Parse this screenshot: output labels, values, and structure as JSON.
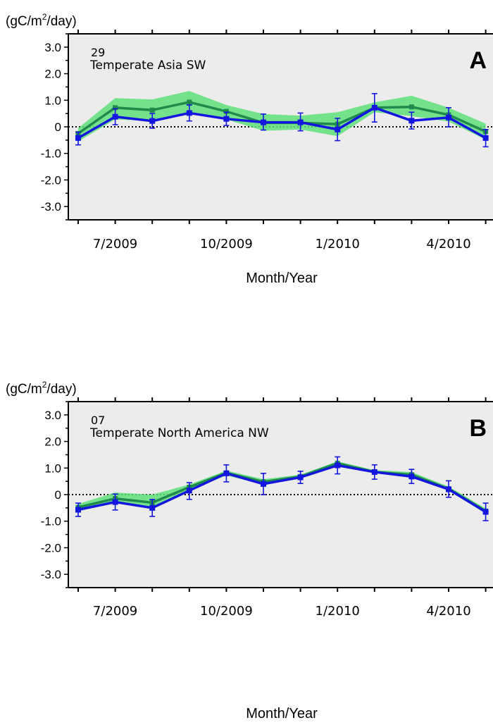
{
  "chart_data": [
    {
      "type": "line",
      "panel_label": "A",
      "region_id": "29",
      "region_name": "Temperate Asia SW",
      "unit_label": "(gC/m",
      "unit_sup": "2",
      "unit_tail": "/day)",
      "xlabel": "Month/Year",
      "ylim": [
        -3.5,
        3.5
      ],
      "yticks": [
        3.0,
        2.0,
        1.0,
        0,
        -1.0,
        -2.0,
        -3.0
      ],
      "ytick_labels": [
        "3.0",
        "2.0",
        "1.0",
        "0",
        "-1.0",
        "-2.0",
        "-3.0"
      ],
      "xtick_labels": [
        {
          "label": "7/2009",
          "month_index": 1
        },
        {
          "label": "10/2009",
          "month_index": 4
        },
        {
          "label": "1/2010",
          "month_index": 7
        },
        {
          "label": "4/2010",
          "month_index": 10
        }
      ],
      "months": [
        "6/2009",
        "7/2009",
        "8/2009",
        "9/2009",
        "10/2009",
        "11/2009",
        "12/2009",
        "1/2010",
        "2/2010",
        "3/2010",
        "4/2010",
        "5/2010"
      ],
      "series": [
        {
          "color": "#1f8a4c",
          "values": [
            -0.25,
            0.72,
            0.63,
            0.93,
            0.58,
            0.15,
            0.15,
            0.1,
            0.72,
            0.75,
            0.45,
            -0.18
          ],
          "band_upper": [
            -0.05,
            1.08,
            1.03,
            1.35,
            0.82,
            0.48,
            0.42,
            0.55,
            0.92,
            1.17,
            0.72,
            0.12
          ],
          "band_lower": [
            -0.55,
            0.28,
            0.22,
            0.48,
            0.28,
            -0.15,
            -0.1,
            -0.35,
            0.55,
            0.4,
            0.2,
            -0.48
          ],
          "band_color": "#5ee07a"
        },
        {
          "color": "#1515e0",
          "values": [
            -0.42,
            0.38,
            0.22,
            0.52,
            0.3,
            0.17,
            0.17,
            -0.1,
            0.72,
            0.23,
            0.35,
            -0.42
          ],
          "err_upper": [
            -0.2,
            0.68,
            0.5,
            0.82,
            0.55,
            0.48,
            0.52,
            0.32,
            1.25,
            0.55,
            0.72,
            -0.1
          ],
          "err_lower": [
            -0.68,
            0.08,
            -0.05,
            0.22,
            0.05,
            -0.12,
            -0.15,
            -0.52,
            0.18,
            -0.08,
            0.0,
            -0.75
          ]
        }
      ]
    },
    {
      "type": "line",
      "panel_label": "B",
      "region_id": "07",
      "region_name": "Temperate North America NW",
      "unit_label": "(gC/m",
      "unit_sup": "2",
      "unit_tail": "/day)",
      "xlabel": "Month/Year",
      "ylim": [
        -3.5,
        3.5
      ],
      "yticks": [
        3.0,
        2.0,
        1.0,
        0,
        -1.0,
        -2.0,
        -3.0
      ],
      "ytick_labels": [
        "3.0",
        "2.0",
        "1.0",
        "0",
        "-1.0",
        "-2.0",
        "-3.0"
      ],
      "xtick_labels": [
        {
          "label": "7/2009",
          "month_index": 1
        },
        {
          "label": "10/2009",
          "month_index": 4
        },
        {
          "label": "1/2010",
          "month_index": 7
        },
        {
          "label": "4/2010",
          "month_index": 10
        }
      ],
      "months": [
        "6/2009",
        "7/2009",
        "8/2009",
        "9/2009",
        "10/2009",
        "11/2009",
        "12/2009",
        "1/2010",
        "2/2010",
        "3/2010",
        "4/2010",
        "5/2010"
      ],
      "series": [
        {
          "color": "#1f8a4c",
          "values": [
            -0.48,
            -0.15,
            -0.3,
            0.28,
            0.82,
            0.48,
            0.68,
            1.18,
            0.85,
            0.75,
            0.22,
            -0.62
          ],
          "band_upper": [
            -0.35,
            0.08,
            0.0,
            0.38,
            0.9,
            0.58,
            0.75,
            1.25,
            0.92,
            0.85,
            0.3,
            -0.52
          ],
          "band_lower": [
            -0.62,
            -0.32,
            -0.45,
            0.15,
            0.72,
            0.38,
            0.6,
            1.08,
            0.8,
            0.65,
            0.15,
            -0.72
          ],
          "band_color": "#5ee07a"
        },
        {
          "color": "#1515e0",
          "values": [
            -0.57,
            -0.28,
            -0.5,
            0.15,
            0.8,
            0.4,
            0.65,
            1.1,
            0.85,
            0.68,
            0.2,
            -0.65
          ],
          "err_upper": [
            -0.32,
            0.02,
            -0.18,
            0.45,
            1.12,
            0.8,
            0.88,
            1.42,
            1.12,
            0.95,
            0.52,
            -0.32
          ],
          "err_lower": [
            -0.82,
            -0.58,
            -0.82,
            -0.18,
            0.48,
            0.0,
            0.42,
            0.78,
            0.58,
            0.42,
            -0.1,
            -0.98
          ]
        }
      ]
    }
  ]
}
